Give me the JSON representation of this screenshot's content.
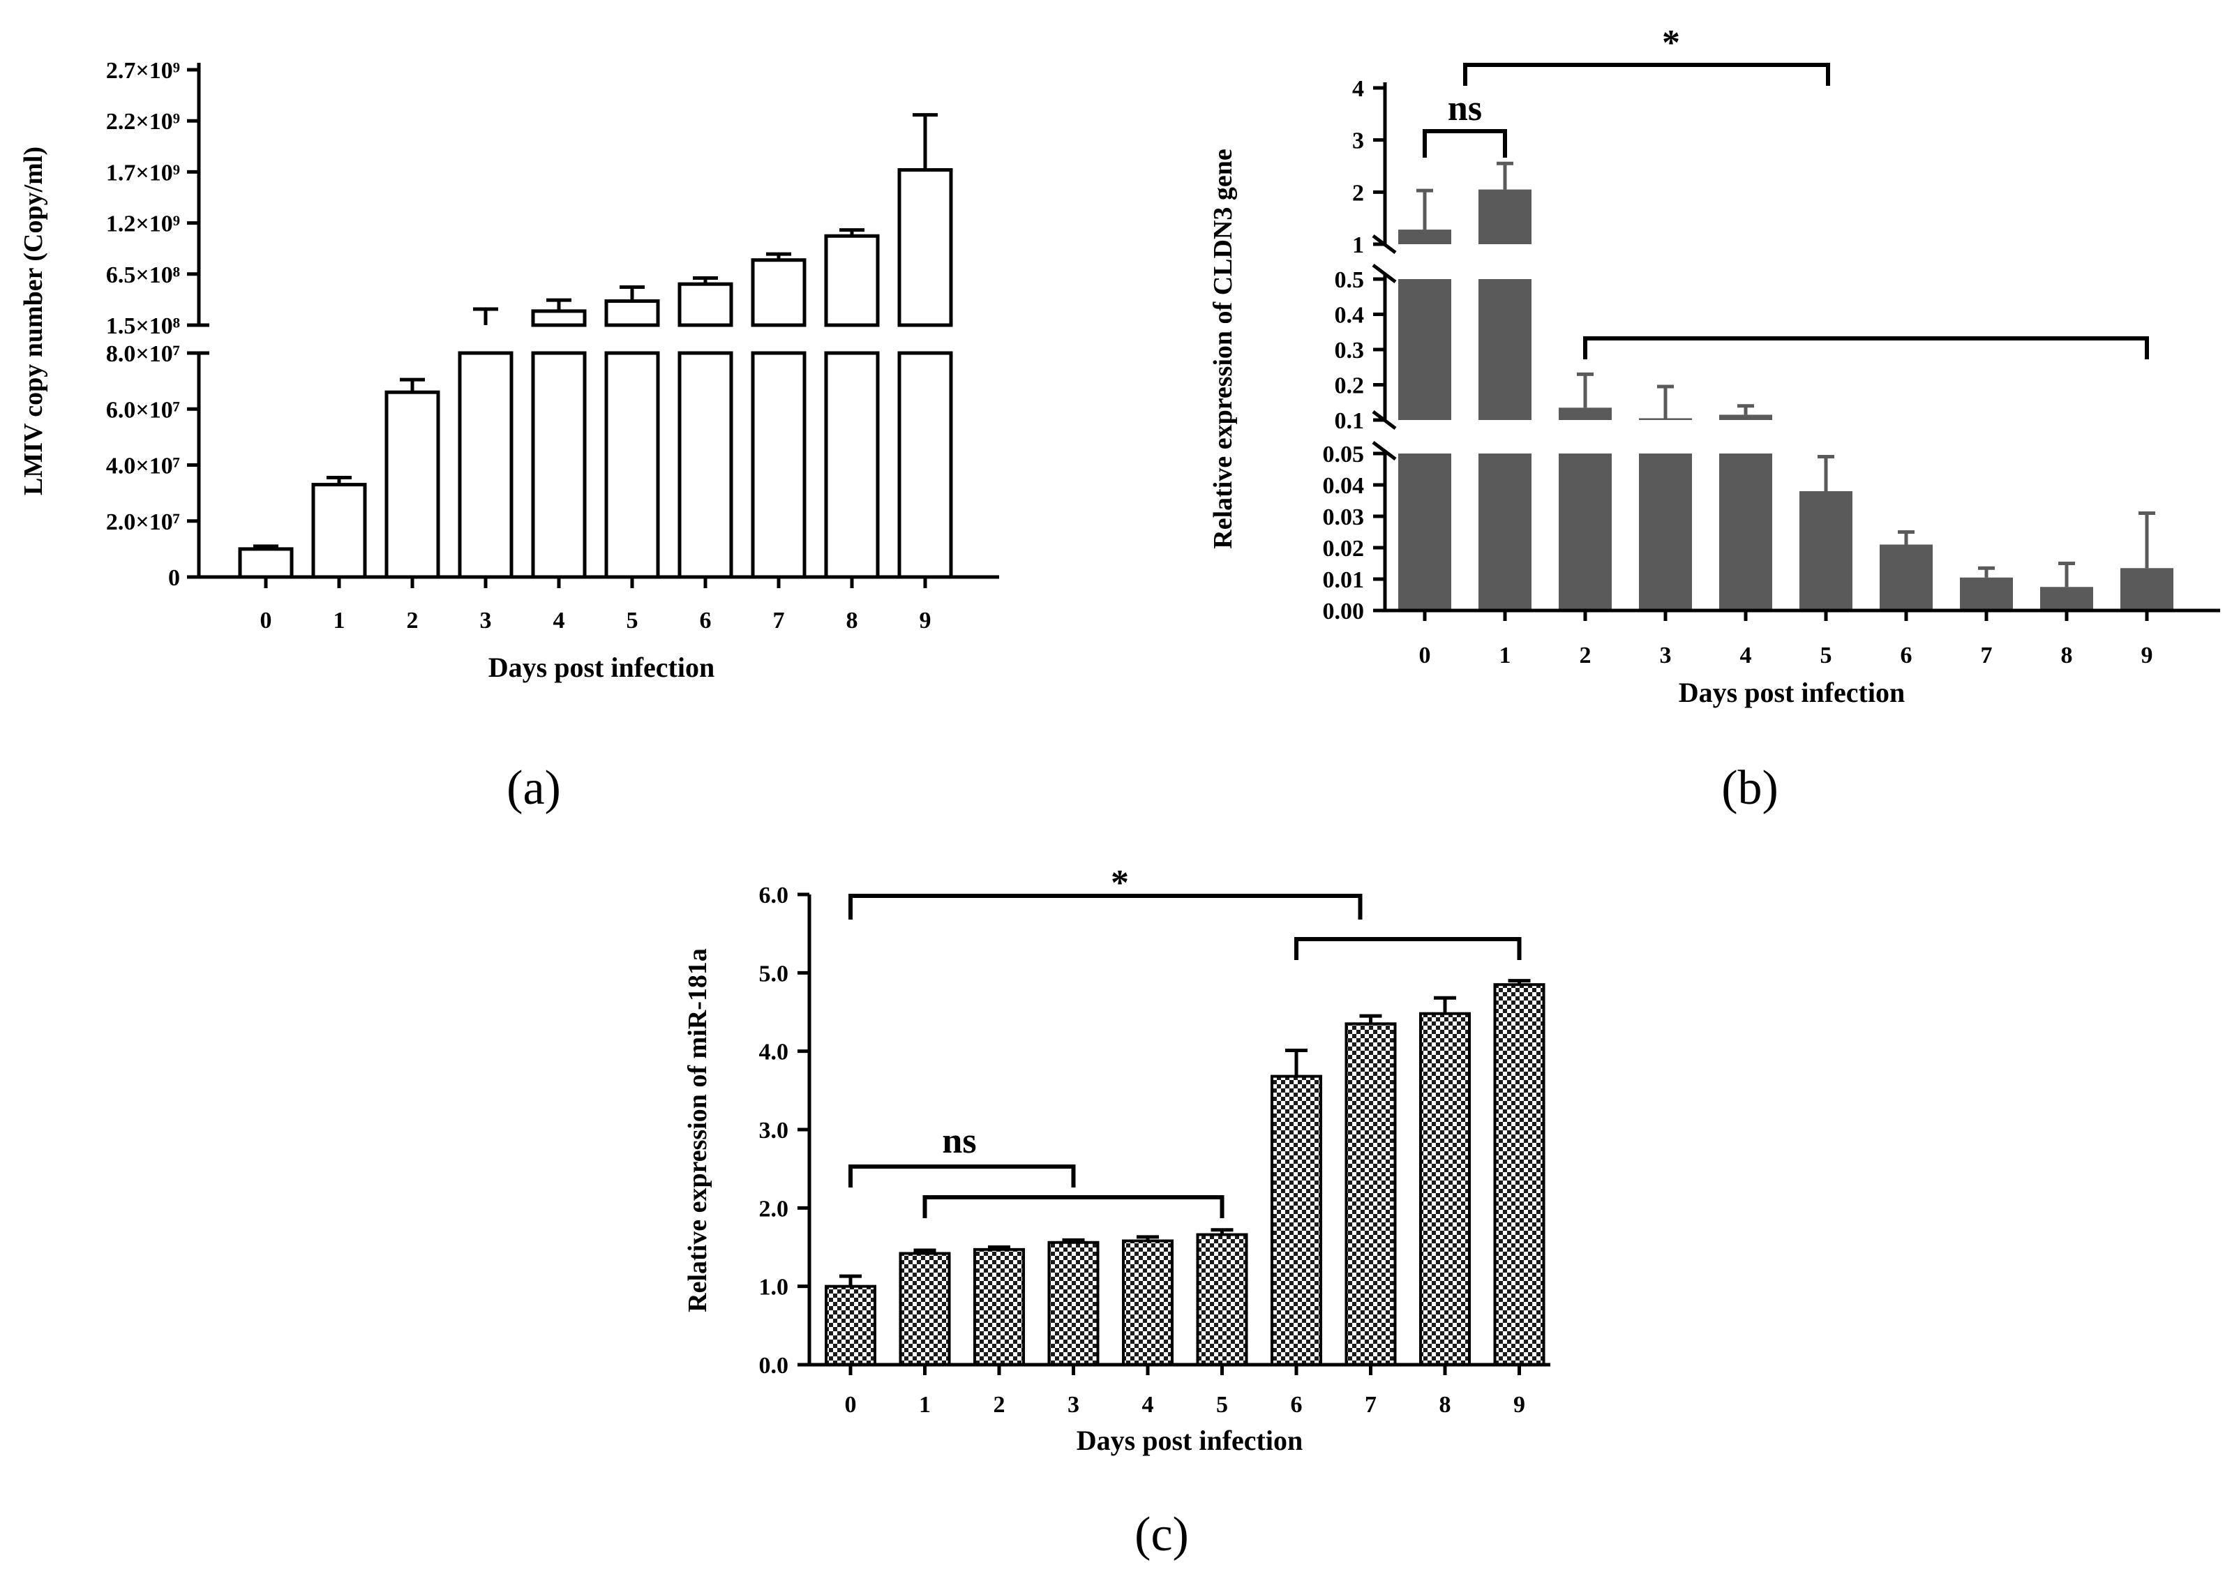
{
  "chart_data": [
    {
      "id": "a",
      "type": "bar",
      "panel_label": "(a)",
      "categories": [
        "0",
        "1",
        "2",
        "3",
        "4",
        "5",
        "6",
        "7",
        "8",
        "9"
      ],
      "values": [
        10000000,
        33000000,
        66000000,
        150000000,
        290000000,
        390000000,
        560000000,
        800000000,
        1040000000,
        1700000000
      ],
      "errors": [
        1000000,
        2500000,
        4500000,
        160000000,
        110000000,
        140000000,
        60000000,
        60000000,
        60000000,
        550000000
      ],
      "xlabel": "Days post infection",
      "ylabel": "LMIV copy number (Copy/ml)",
      "axis_break": true,
      "ylim_lower": [
        0,
        80000000
      ],
      "ylim_upper": [
        150000000,
        2700000000
      ],
      "yticks_lower": [
        "0",
        "2.0×10⁷",
        "4.0×10⁷",
        "6.0×10⁷",
        "8.0×10⁷"
      ],
      "yticks_upper": [
        "1.5×10⁸",
        "6.5×10⁸",
        "1.2×10⁹",
        "1.7×10⁹",
        "2.2×10⁹",
        "2.7×10⁹"
      ],
      "bar_fill": "#ffffff",
      "bar_stroke": "#000000"
    },
    {
      "id": "b",
      "type": "bar",
      "panel_label": "(b)",
      "categories": [
        "0",
        "1",
        "2",
        "3",
        "4",
        "5",
        "6",
        "7",
        "8",
        "9"
      ],
      "values": [
        1.28,
        2.05,
        0.135,
        0.105,
        0.115,
        0.038,
        0.021,
        0.0105,
        0.0075,
        0.0135
      ],
      "errors": [
        0.75,
        0.5,
        0.095,
        0.09,
        0.025,
        0.011,
        0.004,
        0.003,
        0.0075,
        0.0175
      ],
      "xlabel": "Days post infection",
      "ylabel": "Relative expression of CLDN3 gene",
      "axis_break": true,
      "ylim_segments": [
        [
          0,
          0.05
        ],
        [
          0.1,
          0.5
        ],
        [
          1,
          4
        ]
      ],
      "yticks_low": [
        "0.00",
        "0.01",
        "0.02",
        "0.03",
        "0.04",
        "0.05"
      ],
      "yticks_mid": [
        "0.1",
        "0.2",
        "0.3",
        "0.4",
        "0.5"
      ],
      "yticks_high": [
        "1",
        "2",
        "3",
        "4"
      ],
      "bar_fill": "#5a5a5a",
      "annotations": [
        {
          "from": "0",
          "to": "1",
          "label": "ns"
        },
        {
          "from": "0",
          "to": "5",
          "label": "*"
        },
        {
          "from": "2",
          "to": "9",
          "label": ""
        }
      ]
    },
    {
      "id": "c",
      "type": "bar",
      "panel_label": "(c)",
      "categories": [
        "0",
        "1",
        "2",
        "3",
        "4",
        "5",
        "6",
        "7",
        "8",
        "9"
      ],
      "values": [
        1.0,
        1.42,
        1.47,
        1.56,
        1.58,
        1.66,
        3.68,
        4.35,
        4.48,
        4.85
      ],
      "errors": [
        0.13,
        0.04,
        0.03,
        0.03,
        0.05,
        0.06,
        0.33,
        0.1,
        0.2,
        0.05
      ],
      "xlabel": "Days post infection",
      "ylabel": "Relative expression of miR-181a",
      "ylim": [
        0,
        6
      ],
      "yticks": [
        "0.0",
        "1.0",
        "2.0",
        "3.0",
        "4.0",
        "5.0",
        "6.0"
      ],
      "bar_pattern": "checkered",
      "annotations": [
        {
          "from": "0",
          "to": "7",
          "label": "*"
        },
        {
          "from": "6",
          "to": "9",
          "label": ""
        },
        {
          "from": "0",
          "to": "3",
          "label": "ns"
        },
        {
          "from": "1",
          "to": "5",
          "label": ""
        }
      ]
    }
  ]
}
